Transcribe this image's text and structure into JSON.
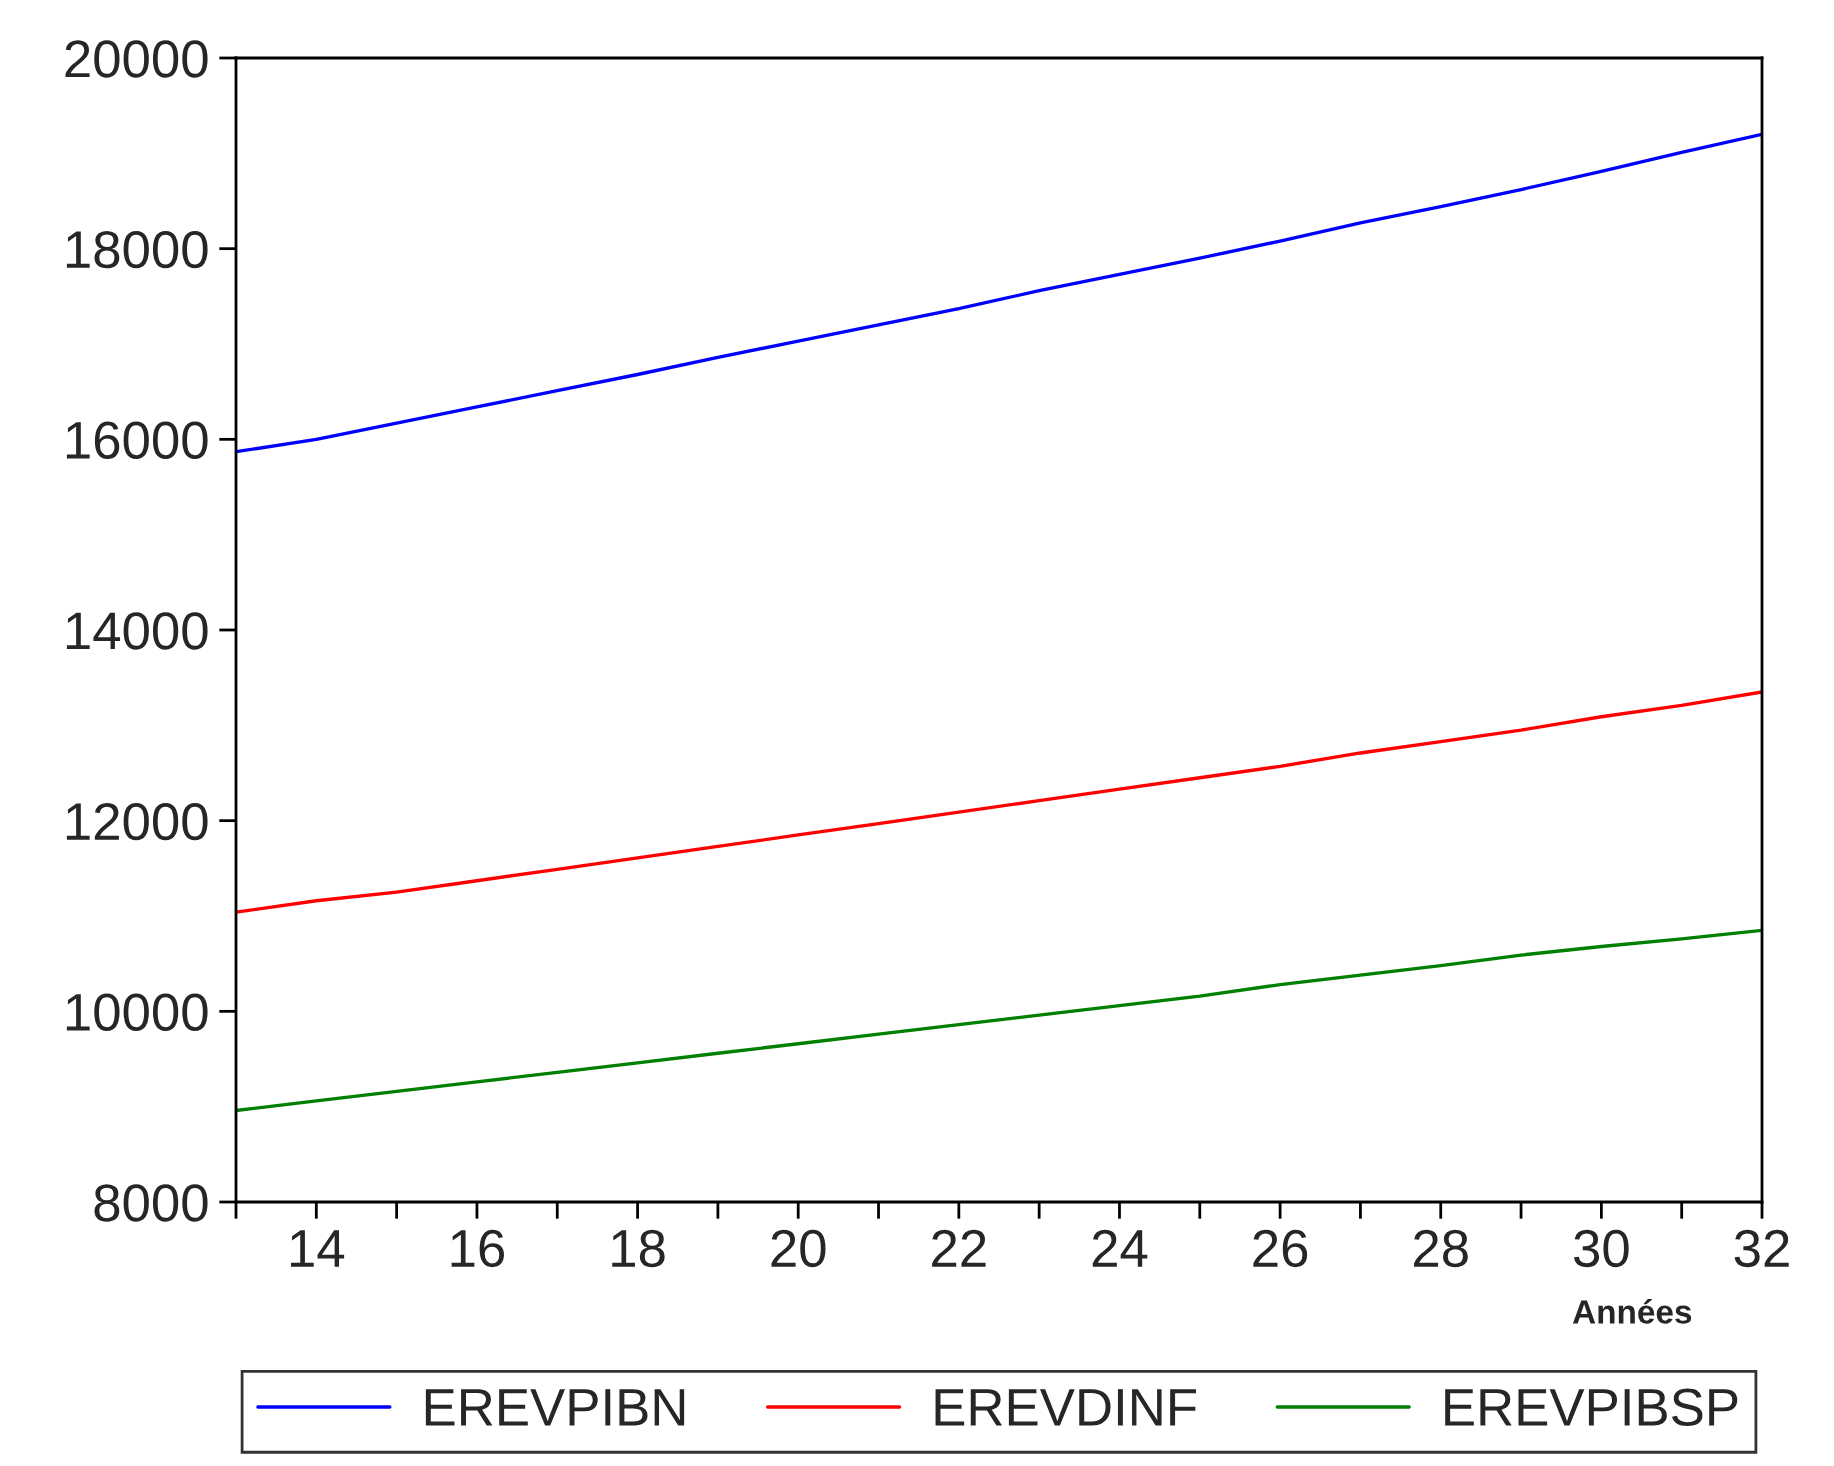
{
  "chart_data": {
    "type": "line",
    "xlabel": "Années",
    "x": [
      13,
      14,
      15,
      16,
      17,
      18,
      19,
      20,
      21,
      22,
      23,
      24,
      25,
      26,
      27,
      28,
      29,
      30,
      31,
      32
    ],
    "series": [
      {
        "name": "EREVPIBN",
        "color": "#0000ff",
        "values": [
          15870,
          16000,
          16170,
          16340,
          16510,
          16680,
          16860,
          17030,
          17200,
          17370,
          17560,
          17730,
          17900,
          18080,
          18270,
          18440,
          18620,
          18810,
          19010,
          19200
        ]
      },
      {
        "name": "EREVDINF",
        "color": "#ff0000",
        "values": [
          11040,
          11160,
          11250,
          11370,
          11490,
          11610,
          11730,
          11850,
          11970,
          12090,
          12210,
          12330,
          12450,
          12570,
          12710,
          12830,
          12950,
          13090,
          13210,
          13350
        ]
      },
      {
        "name": "EREVPIBSP",
        "color": "#008000",
        "values": [
          8960,
          9060,
          9160,
          9260,
          9360,
          9460,
          9560,
          9660,
          9760,
          9860,
          9960,
          10060,
          10160,
          10280,
          10380,
          10480,
          10590,
          10680,
          10760,
          10850
        ]
      }
    ],
    "xlim": [
      13,
      32
    ],
    "xticks": [
      {
        "value": 13,
        "label": null
      },
      14,
      {
        "value": 15,
        "label": null
      },
      16,
      {
        "value": 17,
        "label": null
      },
      18,
      {
        "value": 19,
        "label": null
      },
      20,
      {
        "value": 21,
        "label": null
      },
      22,
      {
        "value": 23,
        "label": null
      },
      24,
      {
        "value": 25,
        "label": null
      },
      26,
      {
        "value": 27,
        "label": null
      },
      28,
      {
        "value": 29,
        "label": null
      },
      30,
      {
        "value": 31,
        "label": null
      },
      32
    ],
    "ylim": [
      8000,
      20000
    ],
    "yticks": [
      8000,
      10000,
      12000,
      14000,
      16000,
      18000,
      20000
    ],
    "grid": false,
    "legend": "bottom",
    "marker": "none",
    "line_style": "solid"
  }
}
